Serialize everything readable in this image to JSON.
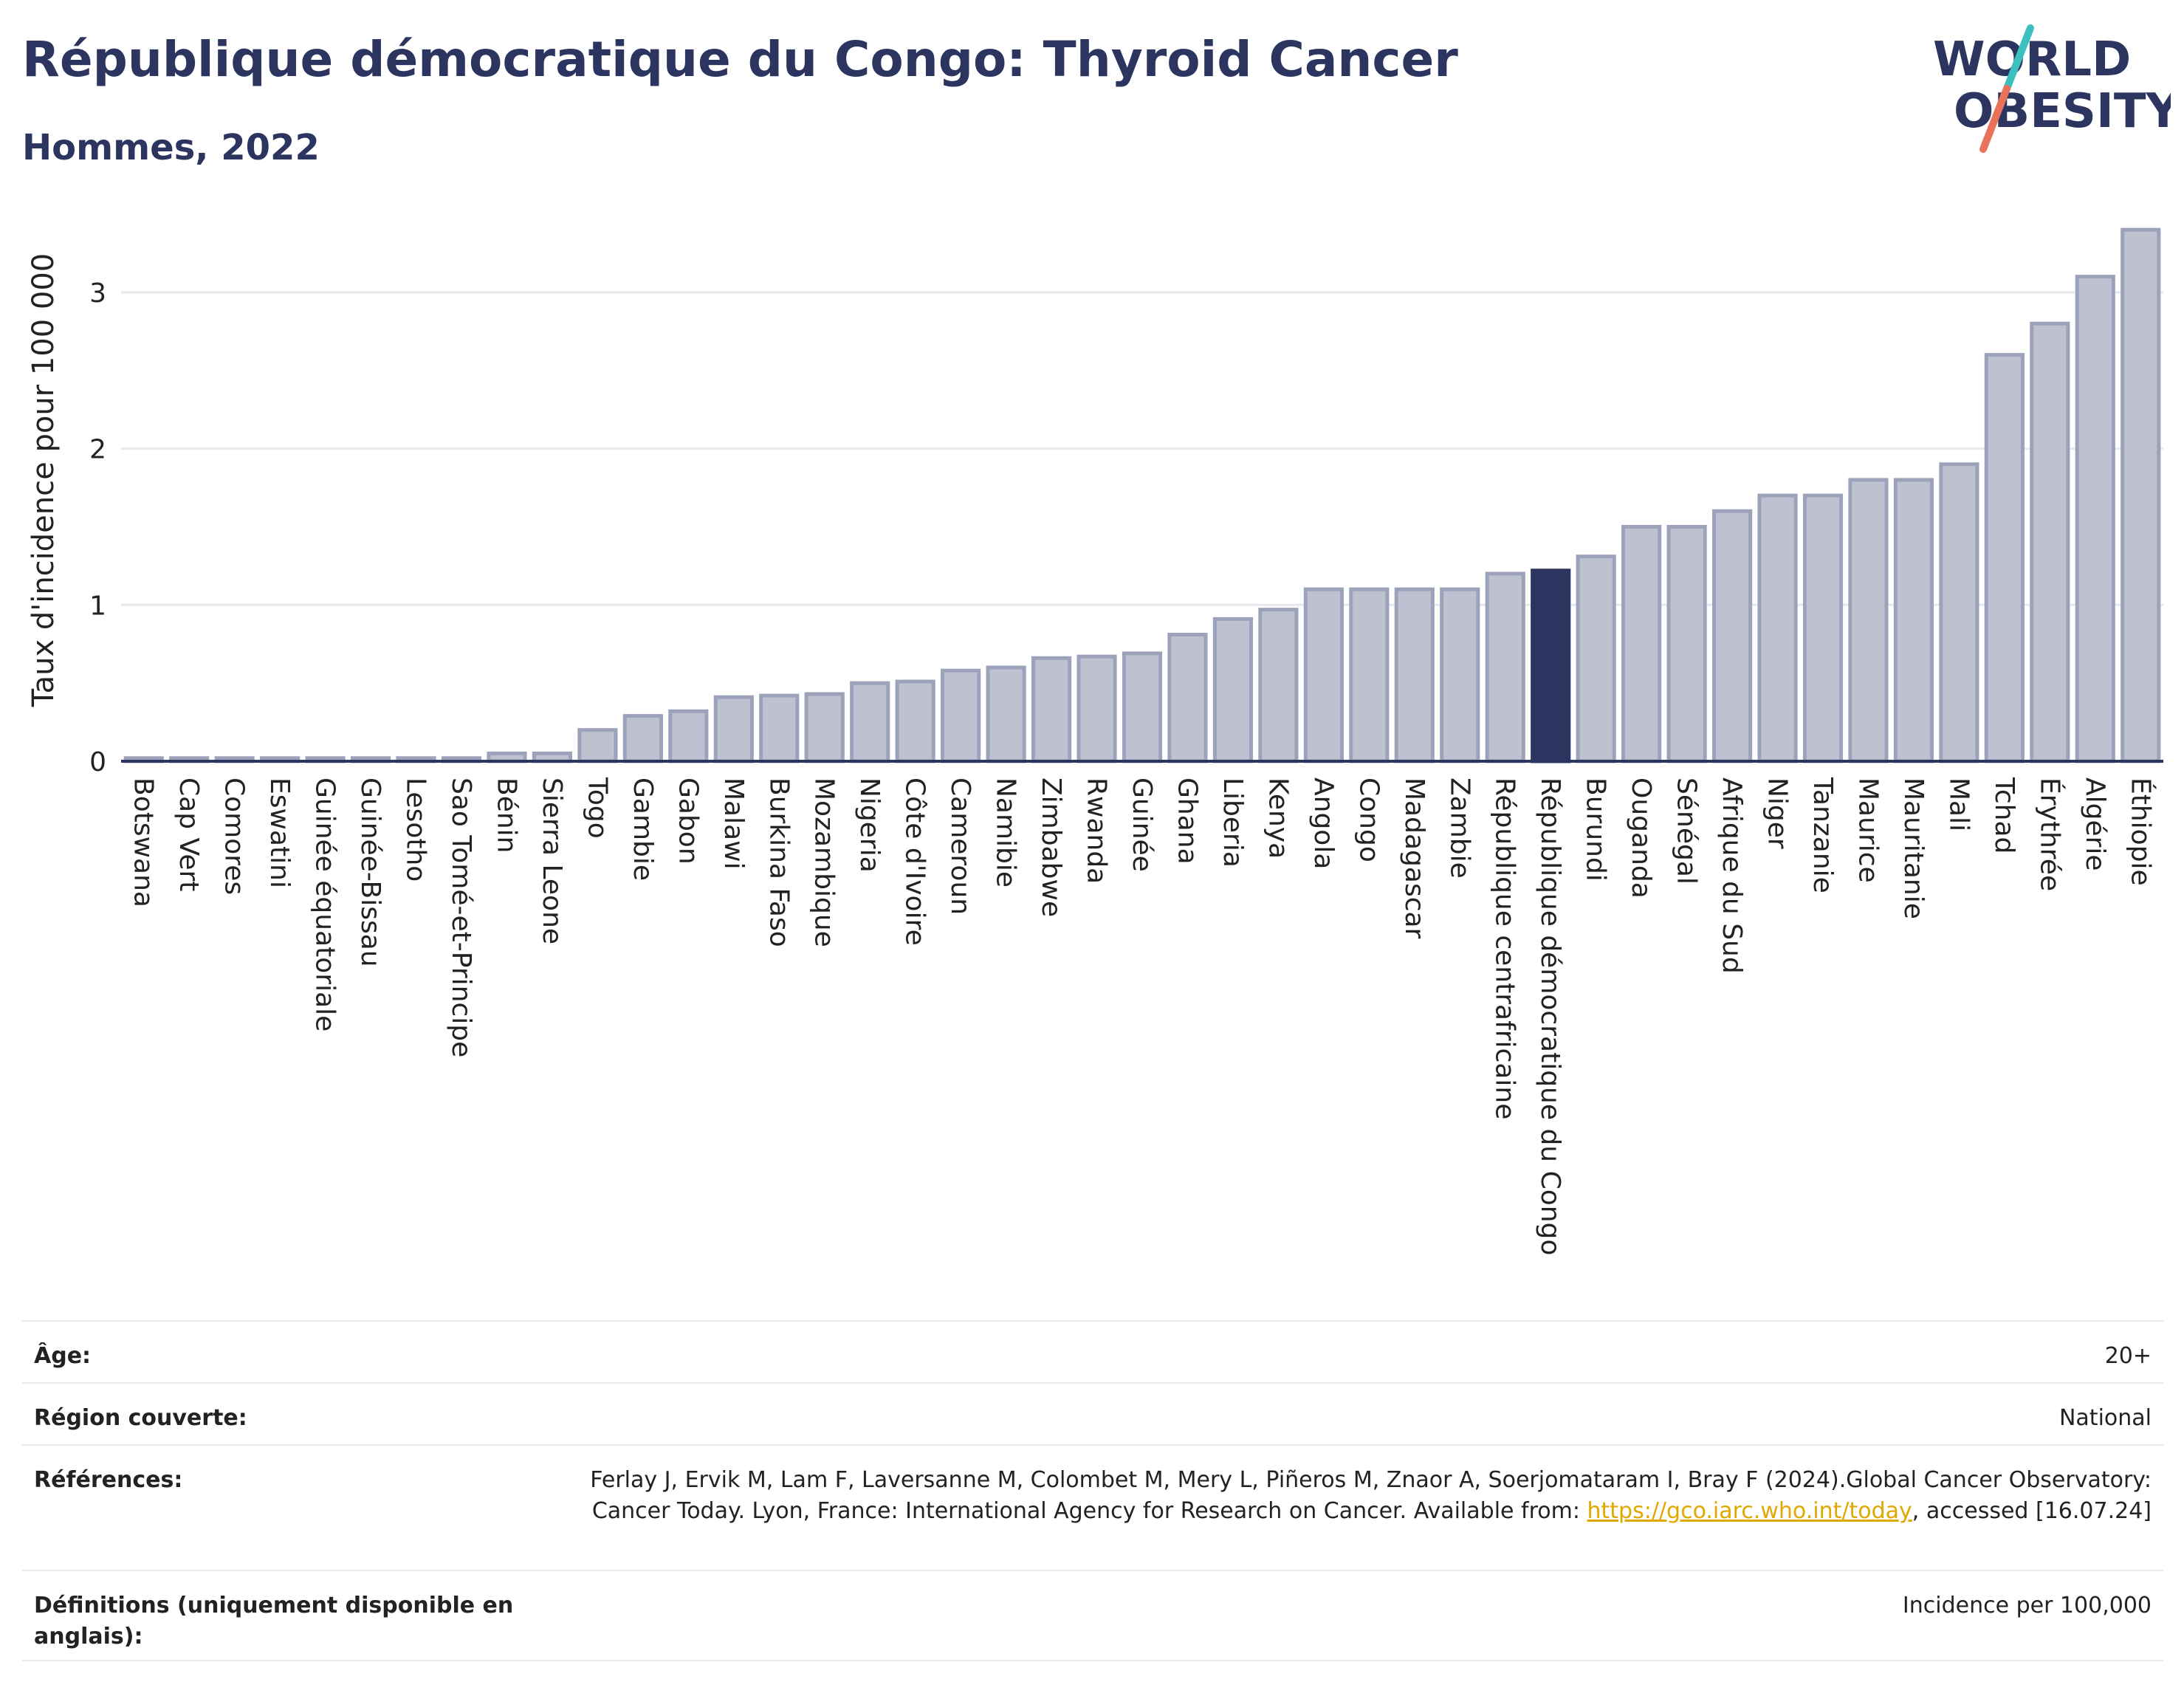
{
  "header": {
    "title": "République démocratique du Congo: Thyroid Cancer",
    "subtitle": "Hommes, 2022",
    "logo_line1": "WORLD",
    "logo_line2": "OBESITY"
  },
  "colors": {
    "bar_default": "#bec2d0",
    "bar_border": "#9da2bb",
    "bar_highlight": "#2c355f",
    "grid": "#e6e8ee",
    "axis": "#2c355f",
    "title": "#2c355f",
    "logo_slash_top": "#3bbfbf",
    "logo_slash_bottom": "#e8735a"
  },
  "chart_data": {
    "type": "bar",
    "title": "République démocratique du Congo: Thyroid Cancer",
    "subtitle": "Hommes, 2022",
    "ylabel": "Taux d'incidence pour 100 000",
    "xlabel": "",
    "ylim": [
      0,
      3.5
    ],
    "yticks": [
      0,
      1,
      2,
      3
    ],
    "grid": true,
    "highlight": "République démocratique du Congo",
    "categories": [
      "Botswana",
      "Cap Vert",
      "Comores",
      "Eswatini",
      "Guinée équatoriale",
      "Guinée-Bissau",
      "Lesotho",
      "Sao Tomé-et-Principe",
      "Bénin",
      "Sierra Leone",
      "Togo",
      "Gambie",
      "Gabon",
      "Malawi",
      "Burkina Faso",
      "Mozambique",
      "Nigeria",
      "Côte d'Ivoire",
      "Cameroun",
      "Namibie",
      "Zimbabwe",
      "Rwanda",
      "Guinée",
      "Ghana",
      "Liberia",
      "Kenya",
      "Angola",
      "Congo",
      "Madagascar",
      "Zambie",
      "République centrafricaine",
      "République démocratique du Congo",
      "Burundi",
      "Ouganda",
      "Sénégal",
      "Afrique du Sud",
      "Niger",
      "Tanzanie",
      "Maurice",
      "Mauritanie",
      "Mali",
      "Tchad",
      "Érythrée",
      "Algérie",
      "Éthiopie"
    ],
    "values": [
      0.02,
      0.02,
      0.02,
      0.02,
      0.02,
      0.02,
      0.02,
      0.02,
      0.05,
      0.05,
      0.2,
      0.29,
      0.32,
      0.41,
      0.42,
      0.43,
      0.5,
      0.51,
      0.58,
      0.6,
      0.66,
      0.67,
      0.69,
      0.81,
      0.91,
      0.97,
      1.1,
      1.1,
      1.1,
      1.1,
      1.2,
      1.22,
      1.31,
      1.5,
      1.5,
      1.6,
      1.7,
      1.7,
      1.8,
      1.8,
      1.9,
      2.6,
      2.8,
      3.1,
      3.4
    ]
  },
  "meta": {
    "age_label": "Âge:",
    "age_value": "20+",
    "region_label": "Région couverte:",
    "region_value": "National",
    "ref_label": "Références:",
    "ref_text": "Ferlay J, Ervik M, Lam F, Laversanne M, Colombet M, Mery L, Piñeros M, Znaor A, Soerjomataram I, Bray F (2024).Global Cancer Observatory: Cancer Today. Lyon, France: International Agency for Research on Cancer. Available from:",
    "ref_link": "https://gco.iarc.who.int/today",
    "ref_suffix": ", accessed [16.07.24]",
    "def_label": "Définitions (uniquement disponible en anglais):",
    "def_value": "Incidence per 100,000"
  }
}
